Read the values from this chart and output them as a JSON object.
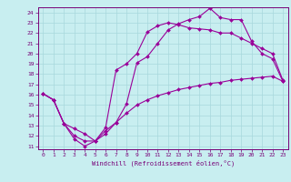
{
  "xlabel": "Windchill (Refroidissement éolien,°C)",
  "xlim": [
    -0.5,
    23.5
  ],
  "ylim": [
    10.7,
    24.5
  ],
  "yticks": [
    11,
    12,
    13,
    14,
    15,
    16,
    17,
    18,
    19,
    20,
    21,
    22,
    23,
    24
  ],
  "xticks": [
    0,
    1,
    2,
    3,
    4,
    5,
    6,
    7,
    8,
    9,
    10,
    11,
    12,
    13,
    14,
    15,
    16,
    17,
    18,
    19,
    20,
    21,
    22,
    23
  ],
  "bg_color": "#c8eef0",
  "grid_color": "#a8d8dc",
  "line_color": "#990099",
  "spine_color": "#770077",
  "tick_color": "#770077",
  "label_color": "#770077",
  "line1_x": [
    0,
    1,
    2,
    3,
    4,
    5,
    6,
    7,
    8,
    9,
    10,
    11,
    12,
    13,
    14,
    15,
    16,
    17,
    18,
    19,
    20,
    21,
    22,
    23
  ],
  "line1_y": [
    16.1,
    15.5,
    13.2,
    11.7,
    11.0,
    11.5,
    12.2,
    13.3,
    15.1,
    19.1,
    19.7,
    21.0,
    22.3,
    22.9,
    23.3,
    23.6,
    24.4,
    23.5,
    23.3,
    23.3,
    21.2,
    20.0,
    19.5,
    17.3
  ],
  "line2_x": [
    0,
    1,
    2,
    3,
    4,
    5,
    6,
    7,
    8,
    9,
    10,
    11,
    12,
    13,
    14,
    15,
    16,
    17,
    18,
    19,
    20,
    21,
    22,
    23
  ],
  "line2_y": [
    16.1,
    15.5,
    13.2,
    12.7,
    12.2,
    11.5,
    12.8,
    18.4,
    19.0,
    20.0,
    22.1,
    22.7,
    23.0,
    22.8,
    22.5,
    22.4,
    22.3,
    22.0,
    22.0,
    21.5,
    21.0,
    20.5,
    20.0,
    17.4
  ],
  "line3_x": [
    0,
    1,
    2,
    3,
    4,
    5,
    6,
    7,
    8,
    9,
    10,
    11,
    12,
    13,
    14,
    15,
    16,
    17,
    18,
    19,
    20,
    21,
    22,
    23
  ],
  "line3_y": [
    16.1,
    15.5,
    13.2,
    12.0,
    11.5,
    11.5,
    12.5,
    13.3,
    14.2,
    15.0,
    15.5,
    15.9,
    16.2,
    16.5,
    16.7,
    16.9,
    17.1,
    17.2,
    17.4,
    17.5,
    17.6,
    17.7,
    17.8,
    17.3
  ],
  "markersize": 2.0,
  "linewidth": 0.8
}
